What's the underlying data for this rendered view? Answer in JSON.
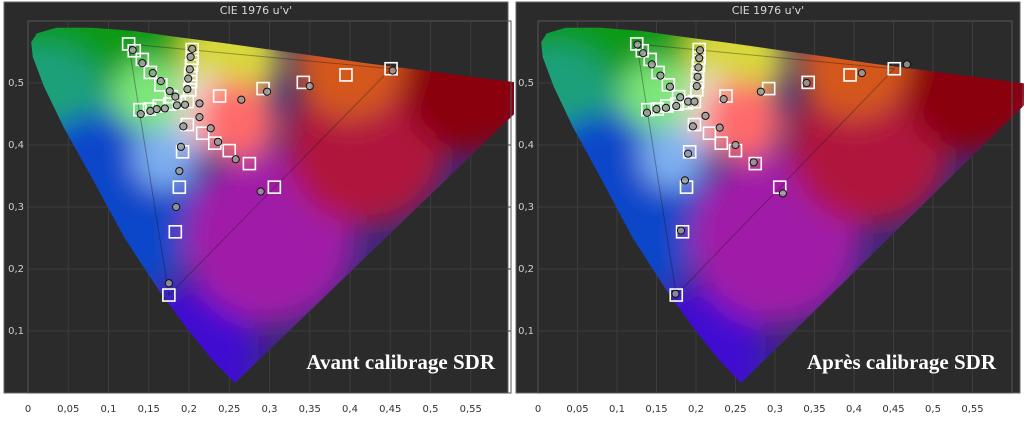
{
  "chart_data": [
    {
      "type": "scatter",
      "title": "CIE 1976 u'v'",
      "caption": "Avant calibrage SDR",
      "xlim": [
        0,
        0.6
      ],
      "ylim": [
        0,
        0.6
      ],
      "x_ticks": [
        "0",
        "0,05",
        "0,1",
        "0,15",
        "0,2",
        "0,25",
        "0,3",
        "0,35",
        "0,4",
        "0,45",
        "0,5",
        "0,55"
      ],
      "y_ticks": [
        "0,1",
        "0,2",
        "0,3",
        "0,4",
        "0,5"
      ],
      "x_tick_values": [
        0,
        0.05,
        0.1,
        0.15,
        0.2,
        0.25,
        0.3,
        0.35,
        0.4,
        0.45,
        0.5,
        0.55
      ],
      "y_tick_values": [
        0.1,
        0.2,
        0.3,
        0.4,
        0.5
      ],
      "gamut": {
        "red": [
          0.451,
          0.523
        ],
        "green": [
          0.125,
          0.563
        ],
        "blue": [
          0.175,
          0.158
        ]
      },
      "series": [
        {
          "role": "target",
          "points": [
            [
              0.125,
              0.563
            ],
            [
              0.132,
              0.552
            ],
            [
              0.142,
              0.538
            ],
            [
              0.152,
              0.517
            ],
            [
              0.165,
              0.497
            ],
            [
              0.178,
              0.478
            ],
            [
              0.188,
              0.468
            ],
            [
              0.139,
              0.457
            ],
            [
              0.151,
              0.458
            ],
            [
              0.163,
              0.463
            ],
            [
              0.176,
              0.466
            ],
            [
              0.204,
              0.554
            ],
            [
              0.204,
              0.54
            ],
            [
              0.203,
              0.528
            ],
            [
              0.202,
              0.514
            ],
            [
              0.202,
              0.502
            ],
            [
              0.201,
              0.489
            ],
            [
              0.238,
              0.479
            ],
            [
              0.292,
              0.491
            ],
            [
              0.342,
              0.501
            ],
            [
              0.395,
              0.513
            ],
            [
              0.451,
              0.523
            ],
            [
              0.198,
              0.433
            ],
            [
              0.217,
              0.419
            ],
            [
              0.232,
              0.403
            ],
            [
              0.25,
              0.391
            ],
            [
              0.275,
              0.37
            ],
            [
              0.306,
              0.332
            ],
            [
              0.192,
              0.389
            ],
            [
              0.188,
              0.332
            ],
            [
              0.183,
              0.26
            ],
            [
              0.175,
              0.158
            ],
            [
              0.198,
              0.47
            ]
          ]
        },
        {
          "role": "measured",
          "points": [
            [
              0.13,
              0.553
            ],
            [
              0.142,
              0.532
            ],
            [
              0.155,
              0.516
            ],
            [
              0.165,
              0.503
            ],
            [
              0.176,
              0.487
            ],
            [
              0.183,
              0.478
            ],
            [
              0.14,
              0.45
            ],
            [
              0.152,
              0.455
            ],
            [
              0.16,
              0.458
            ],
            [
              0.17,
              0.459
            ],
            [
              0.185,
              0.464
            ],
            [
              0.204,
              0.555
            ],
            [
              0.202,
              0.542
            ],
            [
              0.201,
              0.522
            ],
            [
              0.199,
              0.507
            ],
            [
              0.198,
              0.49
            ],
            [
              0.213,
              0.467
            ],
            [
              0.265,
              0.473
            ],
            [
              0.297,
              0.486
            ],
            [
              0.35,
              0.495
            ],
            [
              0.453,
              0.52
            ],
            [
              0.193,
              0.43
            ],
            [
              0.213,
              0.445
            ],
            [
              0.227,
              0.427
            ],
            [
              0.236,
              0.405
            ],
            [
              0.258,
              0.377
            ],
            [
              0.289,
              0.325
            ],
            [
              0.19,
              0.397
            ],
            [
              0.188,
              0.358
            ],
            [
              0.184,
              0.3
            ],
            [
              0.175,
              0.177
            ],
            [
              0.195,
              0.465
            ]
          ]
        }
      ]
    },
    {
      "type": "scatter",
      "title": "CIE 1976 u'v'",
      "caption": "Après calibrage SDR",
      "xlim": [
        0,
        0.6
      ],
      "ylim": [
        0,
        0.6
      ],
      "x_ticks": [
        "0",
        "0,05",
        "0,1",
        "0,15",
        "0,2",
        "0,25",
        "0,3",
        "0,35",
        "0,4",
        "0,45",
        "0,5",
        "0,55"
      ],
      "y_ticks": [
        "0,1",
        "0,2",
        "0,3",
        "0,4",
        "0,5"
      ],
      "x_tick_values": [
        0,
        0.05,
        0.1,
        0.15,
        0.2,
        0.25,
        0.3,
        0.35,
        0.4,
        0.45,
        0.5,
        0.55
      ],
      "y_tick_values": [
        0.1,
        0.2,
        0.3,
        0.4,
        0.5
      ],
      "gamut": {
        "red": [
          0.451,
          0.523
        ],
        "green": [
          0.125,
          0.563
        ],
        "blue": [
          0.175,
          0.158
        ]
      },
      "series": [
        {
          "role": "target",
          "points": [
            [
              0.125,
              0.563
            ],
            [
              0.132,
              0.552
            ],
            [
              0.142,
              0.538
            ],
            [
              0.152,
              0.517
            ],
            [
              0.165,
              0.497
            ],
            [
              0.178,
              0.478
            ],
            [
              0.188,
              0.468
            ],
            [
              0.139,
              0.457
            ],
            [
              0.151,
              0.458
            ],
            [
              0.163,
              0.463
            ],
            [
              0.176,
              0.466
            ],
            [
              0.204,
              0.554
            ],
            [
              0.204,
              0.54
            ],
            [
              0.203,
              0.528
            ],
            [
              0.202,
              0.514
            ],
            [
              0.202,
              0.502
            ],
            [
              0.201,
              0.489
            ],
            [
              0.238,
              0.479
            ],
            [
              0.292,
              0.491
            ],
            [
              0.342,
              0.501
            ],
            [
              0.395,
              0.513
            ],
            [
              0.451,
              0.523
            ],
            [
              0.198,
              0.433
            ],
            [
              0.217,
              0.419
            ],
            [
              0.232,
              0.403
            ],
            [
              0.25,
              0.391
            ],
            [
              0.275,
              0.37
            ],
            [
              0.306,
              0.332
            ],
            [
              0.192,
              0.389
            ],
            [
              0.188,
              0.332
            ],
            [
              0.183,
              0.26
            ],
            [
              0.175,
              0.158
            ],
            [
              0.198,
              0.47
            ]
          ]
        },
        {
          "role": "measured",
          "points": [
            [
              0.126,
              0.562
            ],
            [
              0.133,
              0.548
            ],
            [
              0.144,
              0.53
            ],
            [
              0.155,
              0.512
            ],
            [
              0.167,
              0.494
            ],
            [
              0.18,
              0.477
            ],
            [
              0.138,
              0.452
            ],
            [
              0.15,
              0.458
            ],
            [
              0.162,
              0.46
            ],
            [
              0.175,
              0.463
            ],
            [
              0.19,
              0.47
            ],
            [
              0.205,
              0.553
            ],
            [
              0.204,
              0.54
            ],
            [
              0.203,
              0.525
            ],
            [
              0.202,
              0.51
            ],
            [
              0.201,
              0.495
            ],
            [
              0.235,
              0.474
            ],
            [
              0.282,
              0.486
            ],
            [
              0.34,
              0.5
            ],
            [
              0.41,
              0.516
            ],
            [
              0.467,
              0.53
            ],
            [
              0.196,
              0.43
            ],
            [
              0.212,
              0.447
            ],
            [
              0.23,
              0.428
            ],
            [
              0.25,
              0.4
            ],
            [
              0.273,
              0.372
            ],
            [
              0.31,
              0.322
            ],
            [
              0.19,
              0.386
            ],
            [
              0.186,
              0.343
            ],
            [
              0.181,
              0.262
            ],
            [
              0.174,
              0.16
            ],
            [
              0.198,
              0.47
            ]
          ]
        }
      ]
    }
  ]
}
